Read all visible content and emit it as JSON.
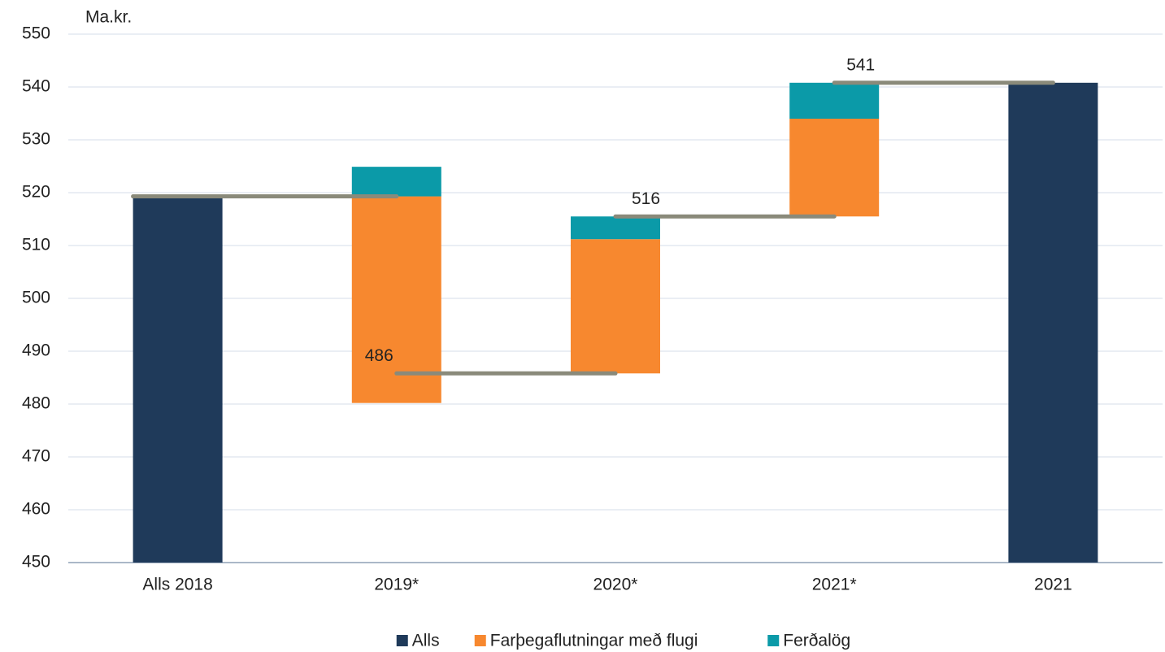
{
  "chart_data": {
    "type": "waterfall",
    "axis_unit": "Ma.kr.",
    "categories": [
      "Alls 2018",
      "2019*",
      "2020*",
      "2021*",
      "2021"
    ],
    "series": [
      {
        "name": "Alls",
        "color": "#1f3a5a",
        "values": [
          519.3,
          null,
          null,
          null,
          540.8
        ]
      },
      {
        "name": "Farþegaflutningar með flugi",
        "color": "#f7882f",
        "values": [
          null,
          -39.1,
          25.4,
          18.5,
          null
        ]
      },
      {
        "name": "Ferðalög",
        "color": "#0b9aa8",
        "values": [
          null,
          5.6,
          4.3,
          6.8,
          null
        ]
      }
    ],
    "annotations": [
      "486",
      "516",
      "541"
    ],
    "connector_color": "#8a8a7a",
    "ylim": [
      450,
      550
    ],
    "yticks": [
      450,
      460,
      470,
      480,
      490,
      500,
      510,
      520,
      530,
      540,
      550
    ],
    "grid": true,
    "legend": "bottom"
  }
}
